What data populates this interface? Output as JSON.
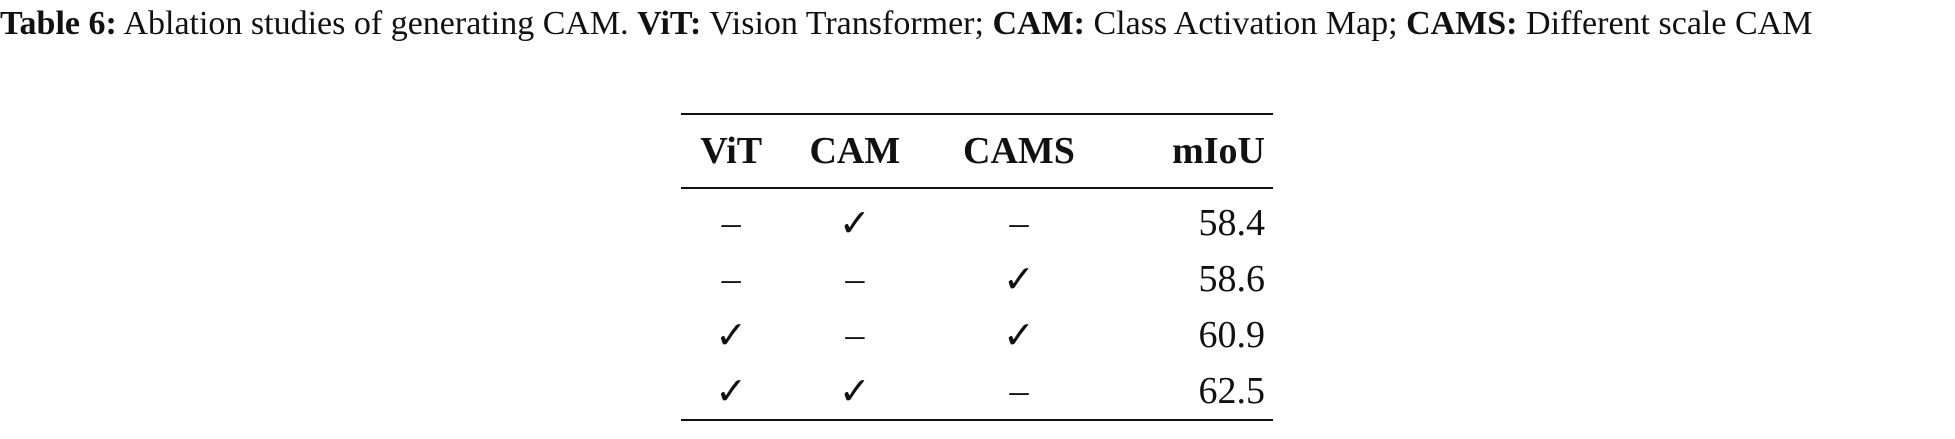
{
  "caption": [
    {
      "text": "Table 6:",
      "bold": true
    },
    {
      "text": " Ablation studies of generating CAM. ",
      "bold": false
    },
    {
      "text": "ViT:",
      "bold": true
    },
    {
      "text": " Vision Transformer; ",
      "bold": false
    },
    {
      "text": "CAM:",
      "bold": true
    },
    {
      "text": " Class Activation Map; ",
      "bold": false
    },
    {
      "text": "CAMS:",
      "bold": true
    },
    {
      "text": " Different scale CAM",
      "bold": false
    }
  ],
  "table": {
    "header": [
      "ViT",
      "CAM",
      "CAMS",
      "mIoU"
    ],
    "rows": [
      [
        "–",
        "✓",
        "–",
        "58.4"
      ],
      [
        "–",
        "–",
        "✓",
        "58.6"
      ],
      [
        "✓",
        "–",
        "✓",
        "60.9"
      ],
      [
        "✓",
        "✓",
        "–",
        "62.5"
      ]
    ]
  }
}
